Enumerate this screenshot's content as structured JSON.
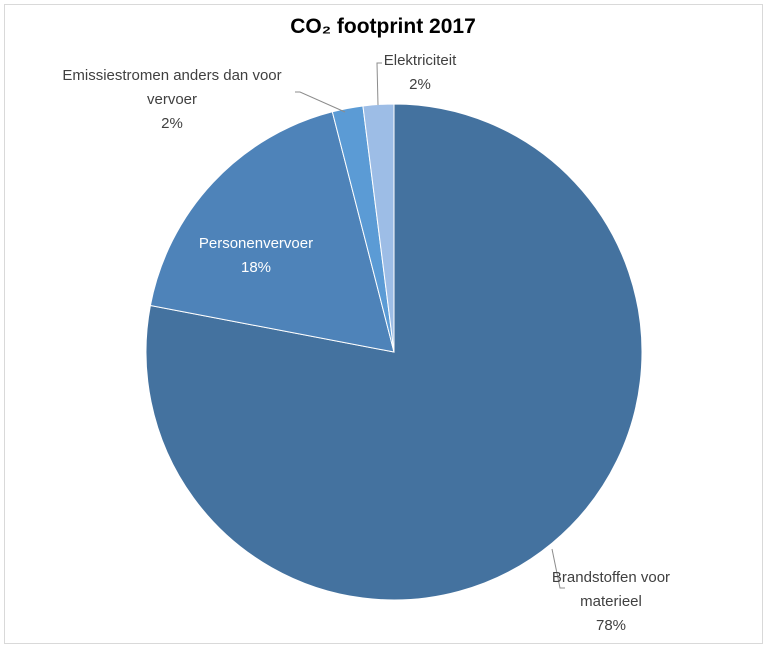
{
  "chart_data": {
    "type": "pie",
    "title": "CO₂ footprint 2017",
    "legend": "none",
    "start_angle_deg": 0,
    "direction": "clockwise",
    "slices": [
      {
        "label_lines": [
          "Brandstoffen voor",
          "materieel"
        ],
        "value": 78,
        "value_label": "78%",
        "color": "#44729f"
      },
      {
        "label_lines": [
          "Personenvervoer"
        ],
        "value": 18,
        "value_label": "18%",
        "color": "#4e83b9"
      },
      {
        "label_lines": [
          "Emissiestromen anders dan voor",
          "vervoer"
        ],
        "value": 2,
        "value_label": "2%",
        "color": "#5b9bd5"
      },
      {
        "label_lines": [
          "Elektriciteit"
        ],
        "value": 2,
        "value_label": "2%",
        "color": "#9dbde6"
      }
    ]
  }
}
